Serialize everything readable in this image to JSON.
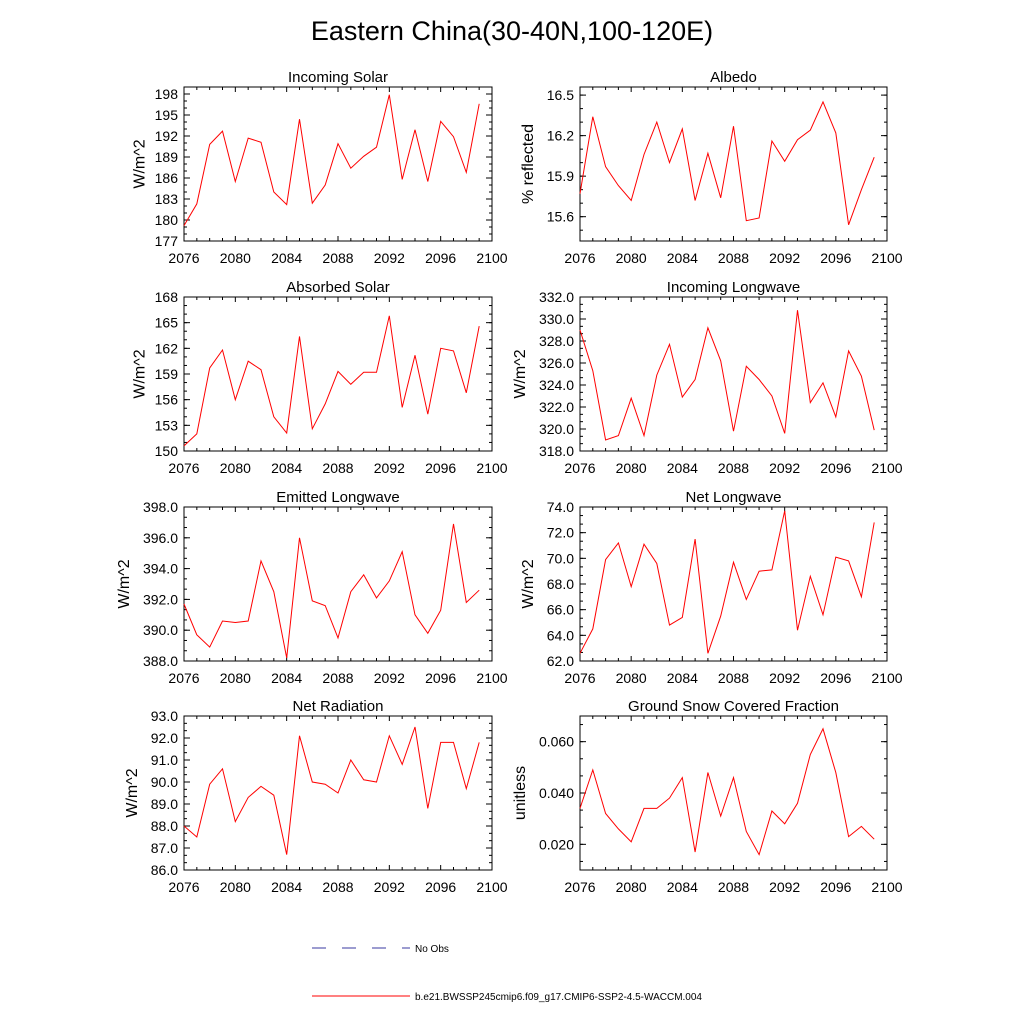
{
  "title": "Eastern China(30-40N,100-120E)",
  "legend": {
    "obs_label": "No Obs",
    "model_label": "b.e21.BWSSP245cmip6.f09_g17.CMIP6-SSP2-4.5-WACCM.004",
    "obs_color": "#3a3aa0",
    "model_color": "#ff0000"
  },
  "chart_data": [
    {
      "type": "line",
      "title": "Incoming Solar",
      "xlabel": "",
      "ylabel": "W/m^2",
      "xlim": [
        2076,
        2100
      ],
      "ylim": [
        177,
        199
      ],
      "xticks": [
        "2076",
        "2080",
        "2084",
        "2088",
        "2092",
        "2096",
        "2100"
      ],
      "yticks": [
        "177",
        "180",
        "183",
        "186",
        "189",
        "192",
        "195",
        "198"
      ],
      "series": [
        {
          "name": "b.e21.BWSSP245cmip6.f09_g17.CMIP6-SSP2-4.5-WACCM.004",
          "color": "#ff0000",
          "x": [
            2076,
            2077,
            2078,
            2079,
            2080,
            2081,
            2082,
            2083,
            2084,
            2085,
            2086,
            2087,
            2088,
            2089,
            2090,
            2091,
            2092,
            2093,
            2094,
            2095,
            2096,
            2097,
            2098,
            2099
          ],
          "values": [
            179.2,
            182.3,
            190.8,
            192.7,
            185.5,
            191.7,
            191.1,
            184.0,
            182.2,
            194.4,
            182.4,
            185.0,
            190.9,
            187.4,
            189.1,
            190.4,
            197.9,
            185.8,
            192.9,
            185.5,
            194.1,
            191.9,
            186.8,
            196.6
          ]
        }
      ]
    },
    {
      "type": "line",
      "title": "Albedo",
      "xlabel": "",
      "ylabel": "% reflected",
      "xlim": [
        2076,
        2100
      ],
      "ylim": [
        15.42,
        16.56
      ],
      "xticks": [
        "2076",
        "2080",
        "2084",
        "2088",
        "2092",
        "2096",
        "2100"
      ],
      "yticks": [
        "15.6",
        "15.9",
        "16.2",
        "16.5"
      ],
      "series": [
        {
          "name": "b.e21.BWSSP245cmip6.f09_g17.CMIP6-SSP2-4.5-WACCM.004",
          "color": "#ff0000",
          "x": [
            2076,
            2077,
            2078,
            2079,
            2080,
            2081,
            2082,
            2083,
            2084,
            2085,
            2086,
            2087,
            2088,
            2089,
            2090,
            2091,
            2092,
            2093,
            2094,
            2095,
            2096,
            2097,
            2098,
            2099
          ],
          "values": [
            15.77,
            16.34,
            15.97,
            15.83,
            15.72,
            16.06,
            16.3,
            16.0,
            16.25,
            15.72,
            16.07,
            15.74,
            16.27,
            15.57,
            15.59,
            16.16,
            16.01,
            16.17,
            16.24,
            16.45,
            16.22,
            15.54,
            15.8,
            16.04
          ]
        }
      ]
    },
    {
      "type": "line",
      "title": "Absorbed Solar",
      "xlabel": "",
      "ylabel": "W/m^2",
      "xlim": [
        2076,
        2100
      ],
      "ylim": [
        150,
        168
      ],
      "xticks": [
        "2076",
        "2080",
        "2084",
        "2088",
        "2092",
        "2096",
        "2100"
      ],
      "yticks": [
        "150",
        "153",
        "156",
        "159",
        "162",
        "165",
        "168"
      ],
      "series": [
        {
          "name": "b.e21.BWSSP245cmip6.f09_g17.CMIP6-SSP2-4.5-WACCM.004",
          "color": "#ff0000",
          "x": [
            2076,
            2077,
            2078,
            2079,
            2080,
            2081,
            2082,
            2083,
            2084,
            2085,
            2086,
            2087,
            2088,
            2089,
            2090,
            2091,
            2092,
            2093,
            2094,
            2095,
            2096,
            2097,
            2098,
            2099
          ],
          "values": [
            150.6,
            152.0,
            159.7,
            161.8,
            156.0,
            160.5,
            159.5,
            154.0,
            152.1,
            163.4,
            152.6,
            155.5,
            159.3,
            157.8,
            159.2,
            159.2,
            165.8,
            155.1,
            161.2,
            154.3,
            162.0,
            161.7,
            156.8,
            164.6
          ]
        }
      ]
    },
    {
      "type": "line",
      "title": "Incoming Longwave",
      "xlabel": "",
      "ylabel": "W/m^2",
      "xlim": [
        2076,
        2100
      ],
      "ylim": [
        318,
        332
      ],
      "xticks": [
        "2076",
        "2080",
        "2084",
        "2088",
        "2092",
        "2096",
        "2100"
      ],
      "yticks": [
        "318.0",
        "320.0",
        "322.0",
        "324.0",
        "326.0",
        "328.0",
        "330.0",
        "332.0"
      ],
      "series": [
        {
          "name": "b.e21.BWSSP245cmip6.f09_g17.CMIP6-SSP2-4.5-WACCM.004",
          "color": "#ff0000",
          "x": [
            2076,
            2077,
            2078,
            2079,
            2080,
            2081,
            2082,
            2083,
            2084,
            2085,
            2086,
            2087,
            2088,
            2089,
            2090,
            2091,
            2092,
            2093,
            2094,
            2095,
            2096,
            2097,
            2098,
            2099
          ],
          "values": [
            329.0,
            325.3,
            319.0,
            319.4,
            322.8,
            319.4,
            324.9,
            327.7,
            322.9,
            324.5,
            329.2,
            326.2,
            319.8,
            325.7,
            324.5,
            323.0,
            319.6,
            330.8,
            322.4,
            324.2,
            321.1,
            327.1,
            324.8,
            319.9
          ]
        }
      ]
    },
    {
      "type": "line",
      "title": "Emitted Longwave",
      "xlabel": "",
      "ylabel": "W/m^2",
      "xlim": [
        2076,
        2100
      ],
      "ylim": [
        388,
        398
      ],
      "xticks": [
        "2076",
        "2080",
        "2084",
        "2088",
        "2092",
        "2096",
        "2100"
      ],
      "yticks": [
        "388.0",
        "390.0",
        "392.0",
        "394.0",
        "396.0",
        "398.0"
      ],
      "series": [
        {
          "name": "b.e21.BWSSP245cmip6.f09_g17.CMIP6-SSP2-4.5-WACCM.004",
          "color": "#ff0000",
          "x": [
            2076,
            2077,
            2078,
            2079,
            2080,
            2081,
            2082,
            2083,
            2084,
            2085,
            2086,
            2087,
            2088,
            2089,
            2090,
            2091,
            2092,
            2093,
            2094,
            2095,
            2096,
            2097,
            2098,
            2099
          ],
          "values": [
            391.7,
            389.7,
            388.9,
            390.6,
            390.5,
            390.6,
            394.5,
            392.5,
            388.2,
            396.0,
            391.9,
            391.6,
            389.5,
            392.5,
            393.6,
            392.1,
            393.2,
            395.1,
            391.0,
            389.8,
            391.3,
            396.9,
            391.8,
            392.6
          ]
        }
      ]
    },
    {
      "type": "line",
      "title": "Net Longwave",
      "xlabel": "",
      "ylabel": "W/m^2",
      "xlim": [
        2076,
        2100
      ],
      "ylim": [
        62,
        74
      ],
      "xticks": [
        "2076",
        "2080",
        "2084",
        "2088",
        "2092",
        "2096",
        "2100"
      ],
      "yticks": [
        "62.0",
        "64.0",
        "66.0",
        "68.0",
        "70.0",
        "72.0",
        "74.0"
      ],
      "series": [
        {
          "name": "b.e21.BWSSP245cmip6.f09_g17.CMIP6-SSP2-4.5-WACCM.004",
          "color": "#ff0000",
          "x": [
            2076,
            2077,
            2078,
            2079,
            2080,
            2081,
            2082,
            2083,
            2084,
            2085,
            2086,
            2087,
            2088,
            2089,
            2090,
            2091,
            2092,
            2093,
            2094,
            2095,
            2096,
            2097,
            2098,
            2099
          ],
          "values": [
            62.6,
            64.5,
            69.9,
            71.2,
            67.8,
            71.1,
            69.6,
            64.8,
            65.4,
            71.5,
            62.6,
            65.5,
            69.7,
            66.8,
            69.0,
            69.1,
            73.7,
            64.4,
            68.6,
            65.6,
            70.1,
            69.8,
            67.0,
            72.8
          ]
        }
      ]
    },
    {
      "type": "line",
      "title": "Net Radiation",
      "xlabel": "",
      "ylabel": "W/m^2",
      "xlim": [
        2076,
        2100
      ],
      "ylim": [
        86,
        93
      ],
      "xticks": [
        "2076",
        "2080",
        "2084",
        "2088",
        "2092",
        "2096",
        "2100"
      ],
      "yticks": [
        "86.0",
        "87.0",
        "88.0",
        "89.0",
        "90.0",
        "91.0",
        "92.0",
        "93.0"
      ],
      "series": [
        {
          "name": "b.e21.BWSSP245cmip6.f09_g17.CMIP6-SSP2-4.5-WACCM.004",
          "color": "#ff0000",
          "x": [
            2076,
            2077,
            2078,
            2079,
            2080,
            2081,
            2082,
            2083,
            2084,
            2085,
            2086,
            2087,
            2088,
            2089,
            2090,
            2091,
            2092,
            2093,
            2094,
            2095,
            2096,
            2097,
            2098,
            2099
          ],
          "values": [
            88.0,
            87.5,
            89.9,
            90.6,
            88.2,
            89.3,
            89.8,
            89.4,
            86.7,
            92.1,
            90.0,
            89.9,
            89.5,
            91.0,
            90.1,
            90.0,
            92.1,
            90.8,
            92.5,
            88.8,
            91.8,
            91.8,
            89.7,
            91.8
          ]
        }
      ]
    },
    {
      "type": "line",
      "title": "Ground Snow Covered Fraction",
      "xlabel": "",
      "ylabel": "unitless",
      "xlim": [
        2076,
        2100
      ],
      "ylim": [
        0.01,
        0.07
      ],
      "xticks": [
        "2076",
        "2080",
        "2084",
        "2088",
        "2092",
        "2096",
        "2100"
      ],
      "yticks": [
        "0.020",
        "0.040",
        "0.060"
      ],
      "series": [
        {
          "name": "b.e21.BWSSP245cmip6.f09_g17.CMIP6-SSP2-4.5-WACCM.004",
          "color": "#ff0000",
          "x": [
            2076,
            2077,
            2078,
            2079,
            2080,
            2081,
            2082,
            2083,
            2084,
            2085,
            2086,
            2087,
            2088,
            2089,
            2090,
            2091,
            2092,
            2093,
            2094,
            2095,
            2096,
            2097,
            2098,
            2099
          ],
          "values": [
            0.034,
            0.049,
            0.032,
            0.026,
            0.021,
            0.034,
            0.034,
            0.038,
            0.046,
            0.017,
            0.048,
            0.031,
            0.046,
            0.025,
            0.016,
            0.033,
            0.028,
            0.036,
            0.055,
            0.065,
            0.048,
            0.023,
            0.027,
            0.022
          ]
        }
      ]
    }
  ]
}
